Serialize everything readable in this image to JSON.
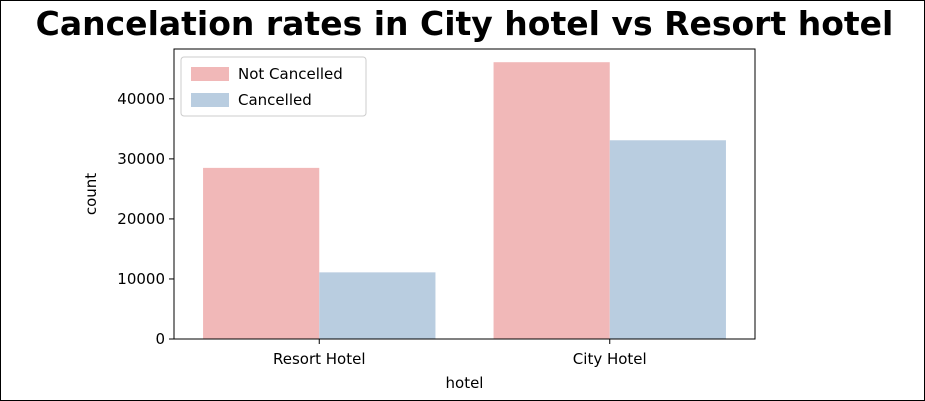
{
  "chart_data": {
    "type": "bar",
    "title": "Cancelation rates in City hotel vs Resort hotel",
    "xlabel": "hotel",
    "ylabel": "count",
    "categories": [
      "Resort Hotel",
      "City Hotel"
    ],
    "series": [
      {
        "name": "Not Cancelled",
        "values": [
          28500,
          46100
        ],
        "color": "#f1b8b8"
      },
      {
        "name": "Cancelled",
        "values": [
          11100,
          33100
        ],
        "color": "#b9cde0"
      }
    ],
    "ylim": [
      0,
      48300
    ],
    "yticks": [
      0,
      10000,
      20000,
      30000,
      40000
    ],
    "grid": false,
    "legend_position": "top-left"
  }
}
